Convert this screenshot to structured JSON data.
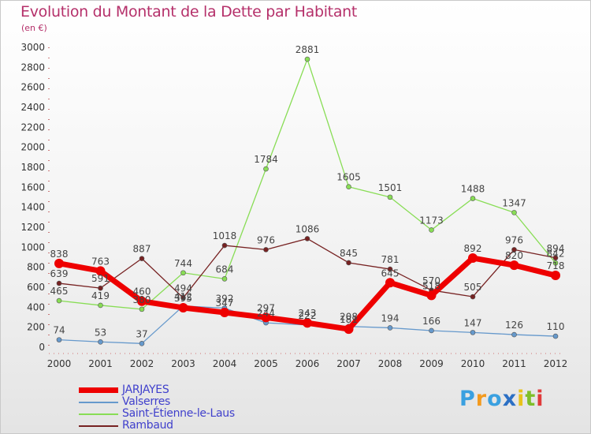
{
  "header": {
    "title": "Evolution du Montant de la Dette par Habitant",
    "subtitle": "(en €)"
  },
  "logo": {
    "letters": [
      "P",
      "r",
      "o",
      "x",
      "i",
      "t",
      "i"
    ],
    "colors": [
      "#3aa0e0",
      "#f39a1e",
      "#3aa0e0",
      "#2b6fc4",
      "#e8c21a",
      "#7fbf2a",
      "#e03a3a"
    ]
  },
  "chart_data": {
    "type": "line",
    "title": "Evolution du Montant de la Dette par Habitant",
    "ylabel": "(en €)",
    "xlabel": "",
    "ylim": [
      0,
      3000
    ],
    "yticks": [
      0,
      200,
      400,
      600,
      800,
      1000,
      1200,
      1400,
      1600,
      1800,
      2000,
      2200,
      2400,
      2600,
      2800,
      3000
    ],
    "categories": [
      "2000",
      "2001",
      "2002",
      "2003",
      "2004",
      "2005",
      "2006",
      "2007",
      "2008",
      "2009",
      "2010",
      "2011",
      "2012"
    ],
    "grid": false,
    "legend": "bottom-left",
    "series": [
      {
        "name": "JARJAYES",
        "color": "#ee0000",
        "width": 7,
        "marker": 6,
        "values": [
          838,
          763,
          460,
          395,
          347,
          297,
          243,
          181,
          645,
          518,
          892,
          820,
          718
        ],
        "labels": [
          "838",
          "763",
          "460",
          "395",
          "347",
          "297",
          "243",
          "181",
          "645",
          "518",
          "892",
          "820",
          "718"
        ]
      },
      {
        "name": "Valserres",
        "color": "#6699cc",
        "width": 1.3,
        "marker": 3,
        "values": [
          74,
          53,
          37,
          412,
          392,
          244,
          222,
          208,
          194,
          166,
          147,
          126,
          110
        ],
        "labels": [
          "74",
          "53",
          "37",
          "412",
          "392",
          "244",
          "222",
          "208",
          "194",
          "166",
          "147",
          "126",
          "110"
        ]
      },
      {
        "name": "Saint-Étienne-le-Laus",
        "color": "#88dd55",
        "width": 1.3,
        "marker": 3,
        "values": [
          465,
          419,
          380,
          744,
          684,
          1784,
          2881,
          1605,
          1501,
          1173,
          1488,
          1347,
          842
        ],
        "labels": [
          "465",
          "419",
          "380",
          "744",
          "684",
          "1784",
          "2881",
          "1605",
          "1501",
          "1173",
          "1488",
          "1347",
          "842"
        ]
      },
      {
        "name": "Rambaud",
        "color": "#772222",
        "width": 1.3,
        "marker": 3,
        "values": [
          639,
          591,
          887,
          494,
          1018,
          976,
          1086,
          845,
          781,
          570,
          505,
          976,
          894
        ],
        "labels": [
          "639",
          "591",
          "887",
          "494",
          "1018",
          "976",
          "1086",
          "845",
          "781",
          "570",
          "505",
          "976",
          "894"
        ]
      }
    ]
  }
}
